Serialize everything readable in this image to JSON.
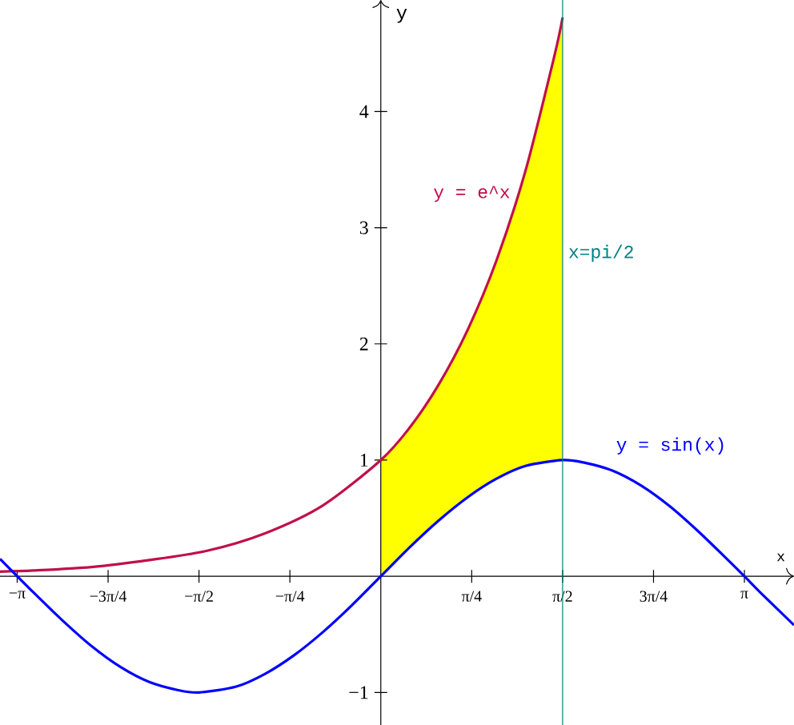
{
  "chart_data": {
    "type": "line",
    "xlabel": "x",
    "ylabel": "y",
    "xlim": [
      -3.29,
      3.57
    ],
    "ylim": [
      -1.28,
      4.96
    ],
    "xticks": [
      {
        "value": -3.1416,
        "label": "−π"
      },
      {
        "value": -2.3562,
        "label": "−3π/4"
      },
      {
        "value": -1.5708,
        "label": "−π/2"
      },
      {
        "value": -0.7854,
        "label": "−π/4"
      },
      {
        "value": 0.7854,
        "label": "π/4"
      },
      {
        "value": 1.5708,
        "label": "π/2"
      },
      {
        "value": 2.3562,
        "label": "3π/4"
      },
      {
        "value": 3.1416,
        "label": "π"
      }
    ],
    "yticks": [
      {
        "value": -1,
        "label": "−1"
      },
      1,
      2,
      3,
      4
    ],
    "series": [
      {
        "name": "y = e^x",
        "color": "#c0104a",
        "x": [
          -3.29,
          -3,
          -2.5,
          -2,
          -1.5,
          -1,
          -0.5,
          0,
          0.25,
          0.5,
          0.75,
          1,
          1.25,
          1.5,
          1.5708
        ],
        "values": [
          0.04,
          0.05,
          0.08,
          0.14,
          0.22,
          0.37,
          0.61,
          1,
          1.28,
          1.65,
          2.12,
          2.72,
          3.49,
          4.48,
          4.81
        ],
        "upper": [
          null,
          null,
          null,
          null,
          null,
          null,
          null,
          1,
          1.28,
          1.65,
          2.12,
          2.72,
          3.49,
          4.48,
          4.81
        ],
        "lower": [
          null,
          null,
          null,
          null,
          null,
          null,
          null,
          0,
          0.25,
          0.48,
          0.68,
          0.84,
          0.95,
          1,
          1
        ]
      },
      {
        "name": "y = sin(x)",
        "color": "#0000ff",
        "x": [
          -3.29,
          -3,
          -2.75,
          -2.5,
          -2.25,
          -2,
          -1.75,
          -1.5708,
          -1.25,
          -1,
          -0.75,
          -0.5,
          -0.25,
          0,
          0.25,
          0.5,
          0.75,
          1,
          1.25,
          1.5708,
          1.75,
          2,
          2.25,
          2.5,
          2.75,
          3,
          3.1416,
          3.3,
          3.57
        ],
        "values": [
          0.15,
          -0.14,
          -0.38,
          -0.6,
          -0.78,
          -0.91,
          -0.98,
          -1,
          -0.95,
          -0.84,
          -0.68,
          -0.48,
          -0.25,
          0,
          0.25,
          0.48,
          0.68,
          0.84,
          0.95,
          1,
          0.98,
          0.91,
          0.78,
          0.6,
          0.38,
          0.14,
          0,
          -0.16,
          -0.42
        ]
      }
    ],
    "ref_lines": [
      {
        "axis": "x",
        "value": 1.5708,
        "label": "x=pi/2",
        "color": "#008080"
      }
    ]
  }
}
